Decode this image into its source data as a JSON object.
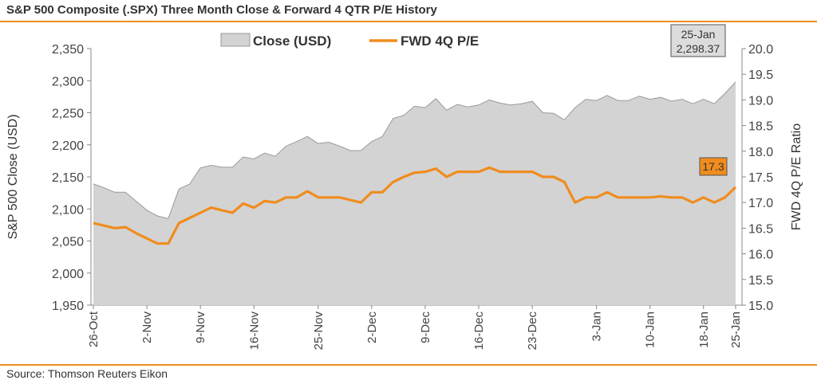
{
  "header": {
    "title": "S&P 500 Composite (.SPX) Three Month Close & Forward 4 QTR P/E History"
  },
  "footer": {
    "source": "Source: Thomson Reuters Eikon"
  },
  "chart_data": {
    "type": "area",
    "colors": {
      "close_fill": "#d3d3d3",
      "close_stroke": "#9a9a9a",
      "pe_line": "#f08c1e",
      "rules": "#f08c1e"
    },
    "x_tick_labels": [
      "26-Oct",
      "2-Nov",
      "9-Nov",
      "16-Nov",
      "25-Nov",
      "2-Dec",
      "9-Dec",
      "16-Dec",
      "23-Dec",
      "3-Jan",
      "10-Jan",
      "18-Jan",
      "25-Jan"
    ],
    "x_tick_index": [
      0,
      5,
      10,
      15,
      21,
      26,
      31,
      36,
      41,
      47,
      52,
      57,
      62
    ],
    "y_left": {
      "label": "S&P 500 Close (USD)",
      "ticks": [
        "1,950",
        "2,000",
        "2,050",
        "2,100",
        "2,150",
        "2,200",
        "2,250",
        "2,300",
        "2,350"
      ],
      "range": [
        1950,
        2350
      ]
    },
    "y_right": {
      "label": "FWD 4Q P/E Ratio",
      "ticks": [
        "15.0",
        "15.5",
        "16.0",
        "16.5",
        "17.0",
        "17.5",
        "18.0",
        "18.5",
        "19.0",
        "19.5",
        "20.0"
      ],
      "range": [
        15,
        20
      ]
    },
    "legend": {
      "position": "top-center",
      "close": "Close (USD)",
      "pe": "FWD 4Q P/E"
    },
    "callout_close": {
      "date": "25-Jan",
      "value": "2,298.37"
    },
    "callout_pe": {
      "value": "17.3"
    },
    "series": [
      {
        "name": "Close (USD)",
        "values": [
          2139,
          2133,
          2126,
          2126,
          2112,
          2098,
          2089,
          2085,
          2131,
          2139,
          2164,
          2168,
          2165,
          2165,
          2181,
          2178,
          2187,
          2182,
          2198,
          2205,
          2213,
          2202,
          2204,
          2198,
          2191,
          2191,
          2205,
          2213,
          2241,
          2246,
          2260,
          2258,
          2272,
          2254,
          2263,
          2259,
          2262,
          2270,
          2265,
          2262,
          2264,
          2268,
          2250,
          2249,
          2239,
          2258,
          2271,
          2269,
          2277,
          2269,
          2269,
          2276,
          2271,
          2274,
          2268,
          2271,
          2264,
          2271,
          2264,
          2280,
          2298
        ]
      },
      {
        "name": "FWD 4Q P/E",
        "values": [
          16.6,
          16.55,
          16.5,
          16.52,
          16.4,
          16.3,
          16.2,
          16.2,
          16.6,
          16.7,
          16.8,
          16.9,
          16.85,
          16.8,
          16.98,
          16.9,
          17.03,
          17.0,
          17.1,
          17.1,
          17.22,
          17.1,
          17.1,
          17.1,
          17.05,
          17.0,
          17.2,
          17.2,
          17.4,
          17.5,
          17.58,
          17.6,
          17.66,
          17.5,
          17.6,
          17.6,
          17.6,
          17.68,
          17.6,
          17.6,
          17.6,
          17.6,
          17.5,
          17.5,
          17.4,
          17.0,
          17.1,
          17.1,
          17.2,
          17.1,
          17.1,
          17.1,
          17.1,
          17.12,
          17.1,
          17.1,
          17.0,
          17.1,
          17.0,
          17.1,
          17.3
        ]
      }
    ]
  }
}
